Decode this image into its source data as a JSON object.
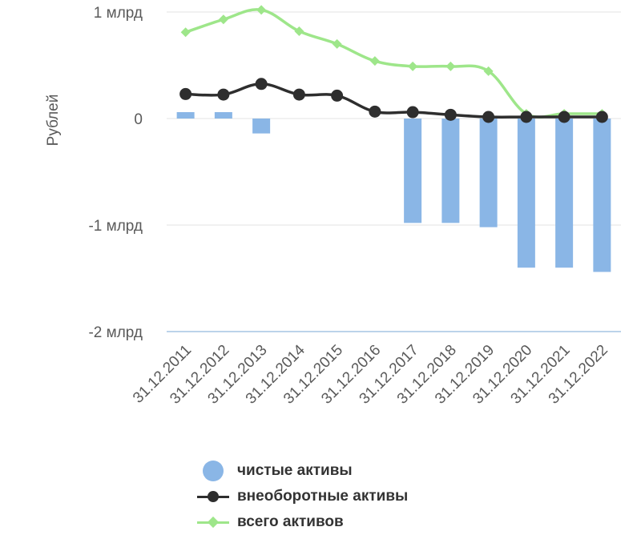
{
  "chart_data": {
    "type": "bar+line",
    "ylabel": "Рублей",
    "y_ticks": [
      {
        "value": 1000000000,
        "label": "1 млрд"
      },
      {
        "value": 0,
        "label": "0"
      },
      {
        "value": -1000000000,
        "label": "-1 млрд"
      },
      {
        "value": -2000000000,
        "label": "-2 млрд"
      }
    ],
    "ylim": [
      -2000000000,
      1000000000
    ],
    "grid": true,
    "legend_placement": "bottom",
    "categories": [
      "31.12.2011",
      "31.12.2012",
      "31.12.2013",
      "31.12.2014",
      "31.12.2015",
      "31.12.2016",
      "31.12.2017",
      "31.12.2018",
      "31.12.2019",
      "31.12.2020",
      "31.12.2021",
      "31.12.2022"
    ],
    "series": [
      {
        "name": "чистые активы",
        "kind": "bar",
        "color": "#8ab6e6",
        "values": [
          60000000,
          60000000,
          -140000000,
          0,
          0,
          0,
          -980000000,
          -980000000,
          -1020000000,
          -1400000000,
          -1400000000,
          -1440000000
        ]
      },
      {
        "name": "внеоборотные активы",
        "kind": "line",
        "marker": "circle",
        "color": "#2e2e2e",
        "values": [
          230000000,
          225000000,
          325000000,
          225000000,
          215000000,
          65000000,
          60000000,
          35000000,
          15000000,
          15000000,
          15000000,
          15000000
        ]
      },
      {
        "name": "всего активов",
        "kind": "line",
        "marker": "diamond",
        "color": "#9ee68a",
        "values": [
          810000000,
          930000000,
          1020000000,
          820000000,
          700000000,
          540000000,
          490000000,
          490000000,
          445000000,
          45000000,
          45000000,
          45000000
        ]
      }
    ]
  },
  "legend": {
    "items": [
      {
        "label": "чистые активы",
        "color": "#8ab6e6",
        "symbol": "circle"
      },
      {
        "label": "внеоборотные активы",
        "color": "#2e2e2e",
        "symbol": "line-circle"
      },
      {
        "label": "всего активов",
        "color": "#9ee68a",
        "symbol": "line-diamond"
      }
    ]
  }
}
